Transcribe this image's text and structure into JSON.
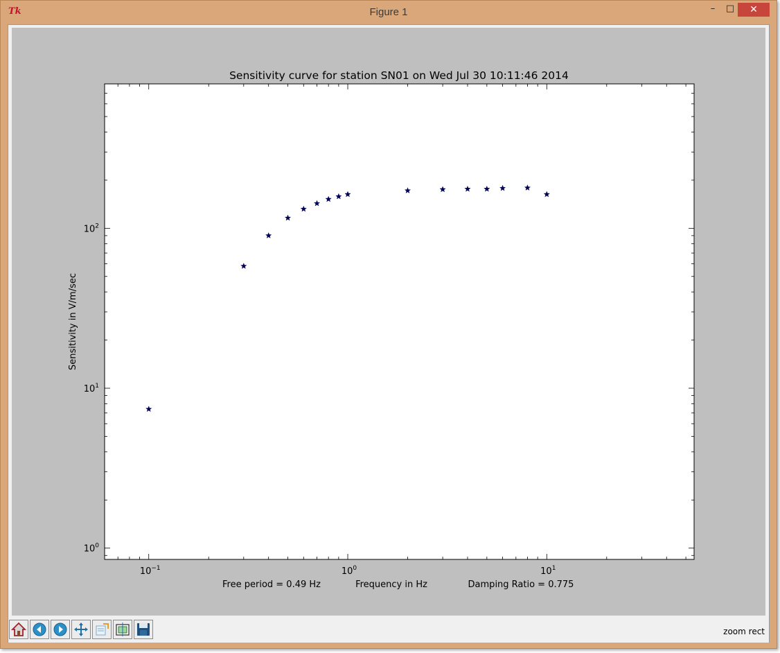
{
  "window": {
    "title": "Figure 1",
    "app_icon_text": "Tk",
    "minimize_symbol": "–",
    "maximize_symbol": "□",
    "close_symbol": "✕"
  },
  "toolbar": {
    "buttons": [
      {
        "name": "home",
        "icon": "home-icon"
      },
      {
        "name": "back",
        "icon": "arrow-left-icon"
      },
      {
        "name": "forward",
        "icon": "arrow-right-icon"
      },
      {
        "name": "pan",
        "icon": "move-arrows-icon"
      },
      {
        "name": "zoom",
        "icon": "zoom-rect-icon"
      },
      {
        "name": "subplots",
        "icon": "subplots-icon"
      },
      {
        "name": "save",
        "icon": "floppy-disk-icon"
      }
    ],
    "status": "zoom rect"
  },
  "chart_data": {
    "type": "scatter",
    "title": "Sensitivity curve for station SN01 on Wed Jul 30 10:11:46 2014",
    "xlabel": "Frequency in Hz",
    "ylabel": "Sensitivity in V/m/sec",
    "xscale": "log",
    "yscale": "log",
    "xlim": [
      0.06,
      55
    ],
    "ylim": [
      0.85,
      800
    ],
    "xticks": [
      {
        "value": 0.1,
        "base": "10",
        "exp": "−1"
      },
      {
        "value": 1,
        "base": "10",
        "exp": "0"
      },
      {
        "value": 10,
        "base": "10",
        "exp": "1"
      }
    ],
    "yticks": [
      {
        "value": 1,
        "base": "10",
        "exp": "0"
      },
      {
        "value": 10,
        "base": "10",
        "exp": "1"
      },
      {
        "value": 100,
        "base": "10",
        "exp": "2"
      }
    ],
    "marker": "*",
    "marker_color": "#000055",
    "annotations": {
      "left": "Free period = 0.49 Hz",
      "right": "Damping Ratio = 0.775"
    },
    "x": [
      0.1,
      0.3,
      0.4,
      0.5,
      0.6,
      0.7,
      0.8,
      0.9,
      1.0,
      2.0,
      3.0,
      4.0,
      5.0,
      6.0,
      8.0,
      10.0
    ],
    "y": [
      7.4,
      58,
      90,
      116,
      132,
      143,
      152,
      158,
      163,
      172,
      175,
      176,
      176,
      178,
      179,
      163
    ]
  }
}
